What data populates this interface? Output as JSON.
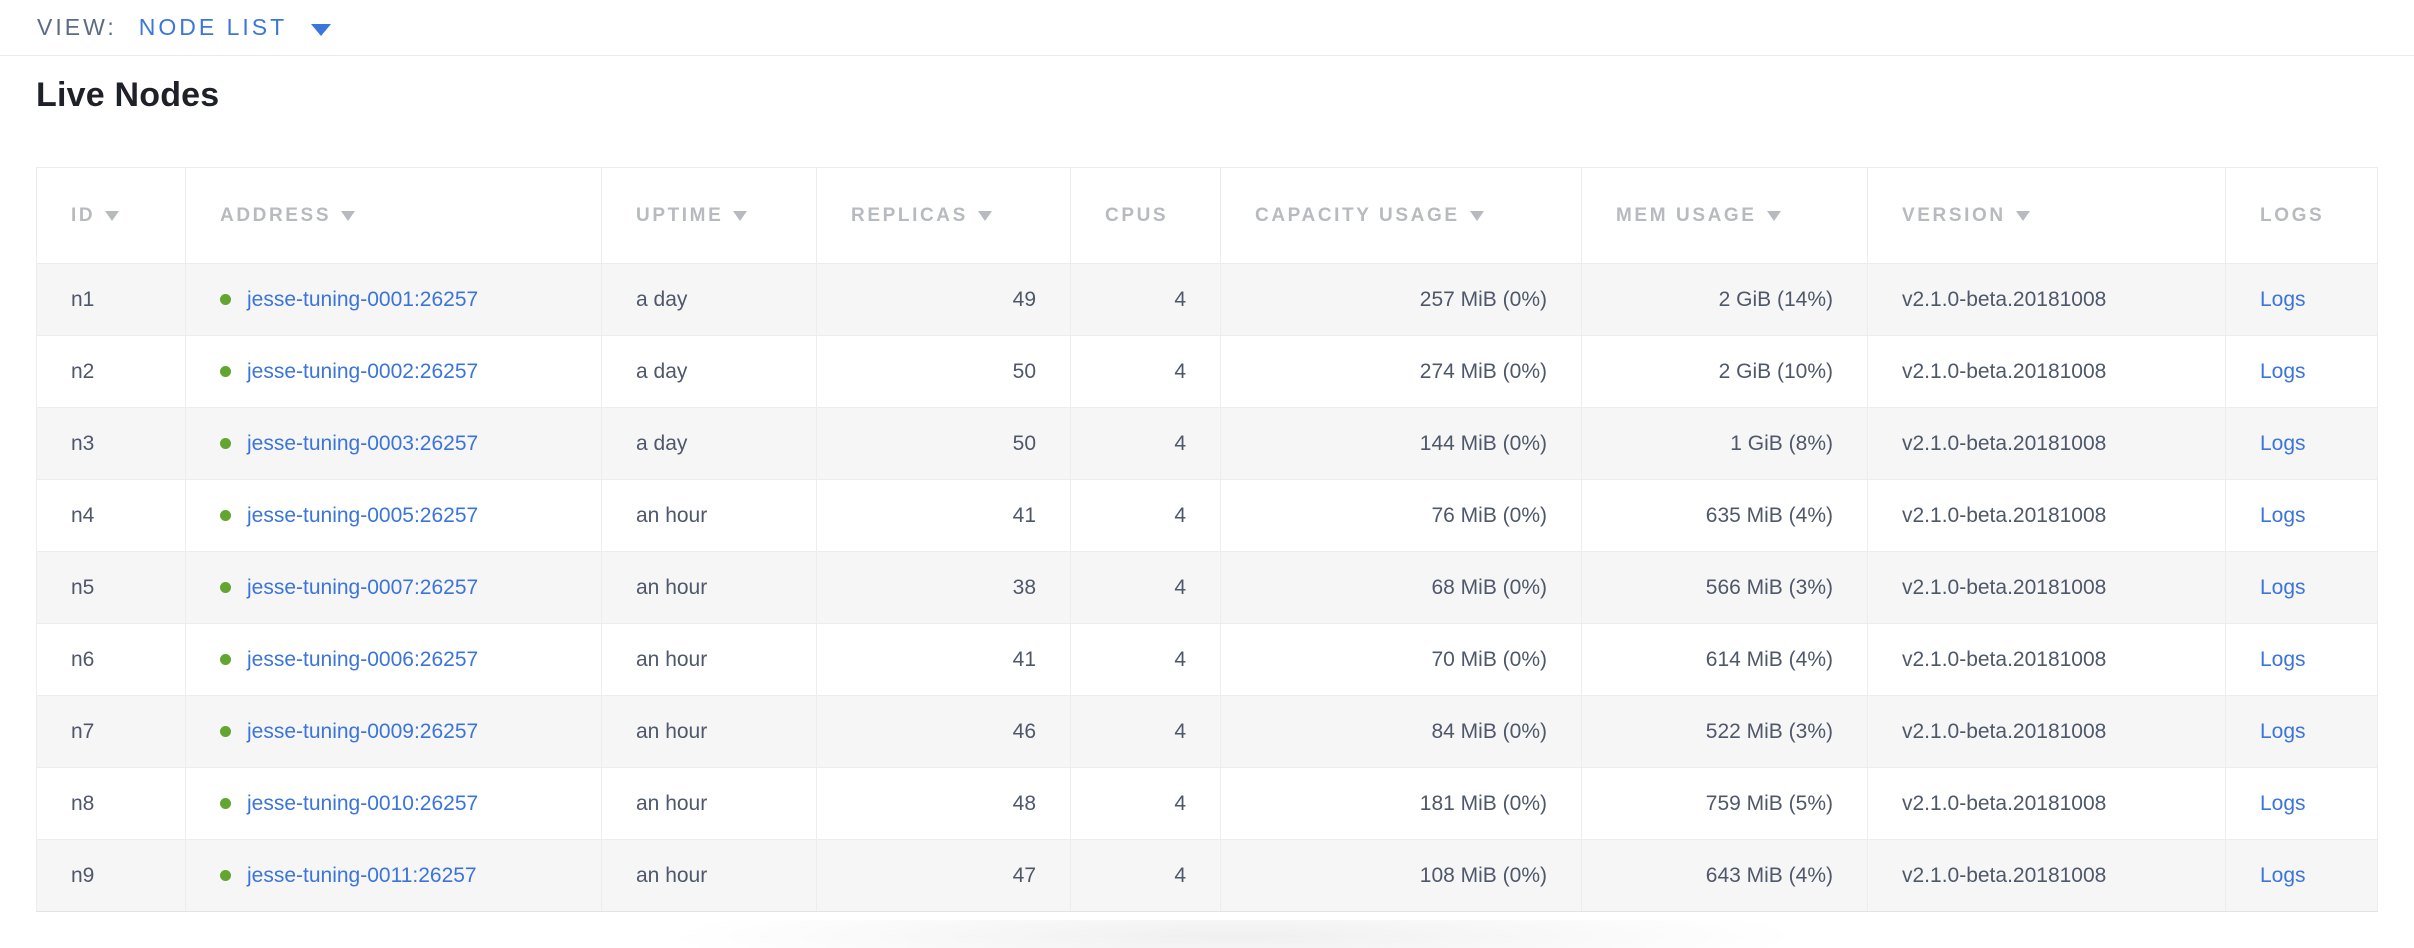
{
  "view_bar": {
    "label": "VIEW:",
    "selected": "NODE LIST"
  },
  "page": {
    "title": "Live Nodes"
  },
  "table": {
    "columns": [
      {
        "key": "id",
        "label": "ID",
        "sortable": true,
        "align": "left"
      },
      {
        "key": "address",
        "label": "ADDRESS",
        "sortable": true,
        "align": "left"
      },
      {
        "key": "uptime",
        "label": "UPTIME",
        "sortable": true,
        "align": "left"
      },
      {
        "key": "replicas",
        "label": "REPLICAS",
        "sortable": true,
        "align": "right"
      },
      {
        "key": "cpus",
        "label": "CPUS",
        "sortable": false,
        "align": "right"
      },
      {
        "key": "capacity",
        "label": "CAPACITY USAGE",
        "sortable": true,
        "align": "right"
      },
      {
        "key": "mem",
        "label": "MEM USAGE",
        "sortable": true,
        "align": "right"
      },
      {
        "key": "version",
        "label": "VERSION",
        "sortable": true,
        "align": "left"
      },
      {
        "key": "logs",
        "label": "LOGS",
        "sortable": false,
        "align": "left"
      }
    ],
    "rows": [
      {
        "id": "n1",
        "address": "jesse-tuning-0001:26257",
        "status": "healthy",
        "uptime": "a day",
        "replicas": "49",
        "cpus": "4",
        "capacity": "257 MiB (0%)",
        "mem": "2 GiB (14%)",
        "version": "v2.1.0-beta.20181008",
        "logs": "Logs"
      },
      {
        "id": "n2",
        "address": "jesse-tuning-0002:26257",
        "status": "healthy",
        "uptime": "a day",
        "replicas": "50",
        "cpus": "4",
        "capacity": "274 MiB (0%)",
        "mem": "2 GiB (10%)",
        "version": "v2.1.0-beta.20181008",
        "logs": "Logs"
      },
      {
        "id": "n3",
        "address": "jesse-tuning-0003:26257",
        "status": "healthy",
        "uptime": "a day",
        "replicas": "50",
        "cpus": "4",
        "capacity": "144 MiB (0%)",
        "mem": "1 GiB (8%)",
        "version": "v2.1.0-beta.20181008",
        "logs": "Logs"
      },
      {
        "id": "n4",
        "address": "jesse-tuning-0005:26257",
        "status": "healthy",
        "uptime": "an hour",
        "replicas": "41",
        "cpus": "4",
        "capacity": "76 MiB (0%)",
        "mem": "635 MiB (4%)",
        "version": "v2.1.0-beta.20181008",
        "logs": "Logs"
      },
      {
        "id": "n5",
        "address": "jesse-tuning-0007:26257",
        "status": "healthy",
        "uptime": "an hour",
        "replicas": "38",
        "cpus": "4",
        "capacity": "68 MiB (0%)",
        "mem": "566 MiB (3%)",
        "version": "v2.1.0-beta.20181008",
        "logs": "Logs"
      },
      {
        "id": "n6",
        "address": "jesse-tuning-0006:26257",
        "status": "healthy",
        "uptime": "an hour",
        "replicas": "41",
        "cpus": "4",
        "capacity": "70 MiB (0%)",
        "mem": "614 MiB (4%)",
        "version": "v2.1.0-beta.20181008",
        "logs": "Logs"
      },
      {
        "id": "n7",
        "address": "jesse-tuning-0009:26257",
        "status": "healthy",
        "uptime": "an hour",
        "replicas": "46",
        "cpus": "4",
        "capacity": "84 MiB (0%)",
        "mem": "522 MiB (3%)",
        "version": "v2.1.0-beta.20181008",
        "logs": "Logs"
      },
      {
        "id": "n8",
        "address": "jesse-tuning-0010:26257",
        "status": "healthy",
        "uptime": "an hour",
        "replicas": "48",
        "cpus": "4",
        "capacity": "181 MiB (0%)",
        "mem": "759 MiB (5%)",
        "version": "v2.1.0-beta.20181008",
        "logs": "Logs"
      },
      {
        "id": "n9",
        "address": "jesse-tuning-0011:26257",
        "status": "healthy",
        "uptime": "an hour",
        "replicas": "47",
        "cpus": "4",
        "capacity": "108 MiB (0%)",
        "mem": "643 MiB (4%)",
        "version": "v2.1.0-beta.20181008",
        "logs": "Logs"
      }
    ]
  },
  "colors": {
    "link_blue": "#3b74da",
    "view_blue": "#3b76db",
    "healthy_green": "#64a52f",
    "header_gray": "#b7babf",
    "cell_text": "#4e5869",
    "row_stripe": "#f6f6f7"
  }
}
